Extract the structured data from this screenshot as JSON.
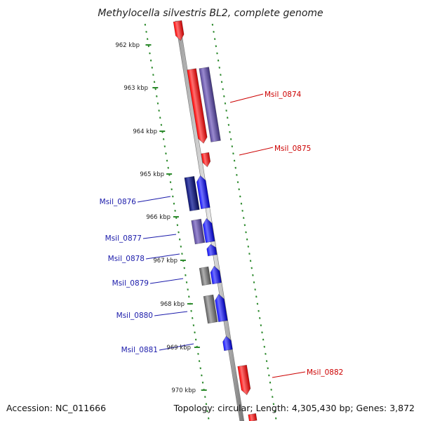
{
  "title": "Methylocella silvestris BL2, complete genome",
  "accession": "Accession: NC_011666",
  "summary": "Topology: circular; Length: 4,305,430 bp; Genes: 3,872",
  "colors": {
    "forward_gene": "#ff0000",
    "reverse_gene_blue": "#0000ff",
    "reverse_gene_purple": "#5a4a9c",
    "reverse_gene_navy": "#0b1270",
    "reverse_gene_gray": "#707070",
    "ruler": "#2e8b2e",
    "forward_label": "#cc0000",
    "reverse_label": "#1a1aaa",
    "backbone": "#888888"
  },
  "ticks": [
    {
      "label": "962 kbp"
    },
    {
      "label": "963 kbp"
    },
    {
      "label": "964 kbp"
    },
    {
      "label": "965 kbp"
    },
    {
      "label": "966 kbp"
    },
    {
      "label": "967 kbp"
    },
    {
      "label": "968 kbp"
    },
    {
      "label": "969 kbp"
    },
    {
      "label": "970 kbp"
    }
  ],
  "gene_labels": [
    {
      "name": "Msil_0874",
      "strand": "forward"
    },
    {
      "name": "Msil_0875",
      "strand": "forward"
    },
    {
      "name": "Msil_0876",
      "strand": "reverse"
    },
    {
      "name": "Msil_0877",
      "strand": "reverse"
    },
    {
      "name": "Msil_0878",
      "strand": "reverse"
    },
    {
      "name": "Msil_0879",
      "strand": "reverse"
    },
    {
      "name": "Msil_0880",
      "strand": "reverse"
    },
    {
      "name": "Msil_0881",
      "strand": "reverse"
    },
    {
      "name": "Msil_0882",
      "strand": "forward"
    }
  ]
}
